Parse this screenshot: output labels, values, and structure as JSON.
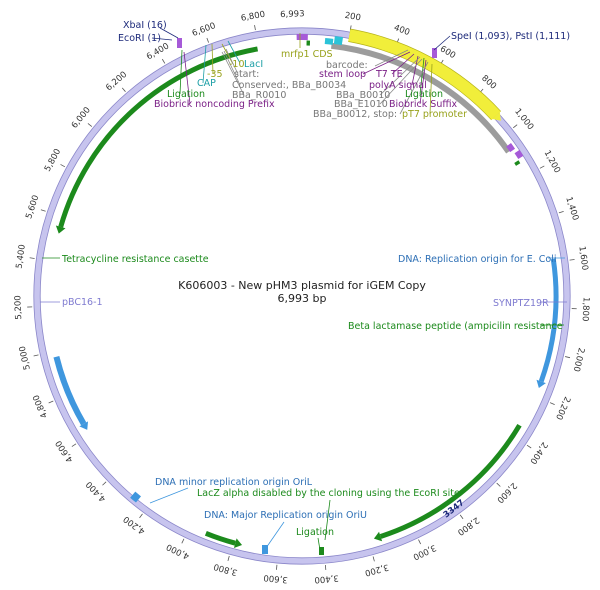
{
  "plasmid": {
    "title": "K606003 - New pHM3 plasmid for iGEM Copy",
    "length_text": "6,993 bp",
    "length": 6993
  },
  "colors": {
    "backbone": "#c7c4ee",
    "backbone_stroke": "#8a86c9",
    "green": "#1c8a1c",
    "blue": "#3f97de",
    "yellow": "#f1ee3a",
    "gray": "#9c9c9c",
    "cyan": "#2cc3d8",
    "purple": "#a65ad8",
    "navy": "#1d2a7a",
    "olive": "#98a21c",
    "teal": "#1c9fa6",
    "darkpurple": "#7a1f86",
    "lavender": "#7f7bd0",
    "text_gray": "#666666"
  },
  "ticks": [
    "200",
    "400",
    "600",
    "800",
    "1,000",
    "1,200",
    "1,400",
    "1,600",
    "1,800",
    "2,000",
    "2,200",
    "2,400",
    "2,600",
    "2,800",
    "3,000",
    "3,200",
    "3,400",
    "3,600",
    "3,800",
    "4,000",
    "4,200",
    "4,400",
    "4,600",
    "4,800",
    "5,000",
    "5,200",
    "5,400",
    "5,600",
    "5,800",
    "6,000",
    "6,200",
    "6,400",
    "6,600",
    "6,800"
  ],
  "tick_values": [
    200,
    400,
    600,
    800,
    1000,
    1200,
    1400,
    1600,
    1800,
    2000,
    2200,
    2400,
    2600,
    2800,
    3000,
    3200,
    3400,
    3600,
    3800,
    4000,
    4200,
    4400,
    4600,
    4800,
    5000,
    5200,
    5400,
    5600,
    5800,
    6000,
    6200,
    6400,
    6600,
    6800
  ],
  "extra_tick_label": "6,993",
  "position_marker": "3347",
  "features": {
    "ecori": "EcoRI (1)",
    "xbai": "XbaI (16)",
    "spei_psti": "SpeI (1,093), PstI (1,111)",
    "mrfp1": "mrfp1 CDS",
    "laci": "LacI",
    "minus10": "-10",
    "minus35": "-35",
    "cap": "CAP",
    "start": "start:",
    "conserved": "Conserved:, BBa_B0034",
    "bba_r0010": "BBa_R0010",
    "ligation_left": "Ligation",
    "biobrick_prefix": "Biobrick noncoding Prefix",
    "barcode": "barcode:",
    "stem_loop": "stem loop",
    "t7te": "T7 TE",
    "polya": "polyA signal",
    "bba_b0010": "BBa_B0010",
    "ligation_right": "Ligation",
    "bba_e1010": "BBa_E1010",
    "biobrick_suffix": "Biobrick Suffix",
    "bba_b0012": "BBa_B0012, stop:",
    "pt7": "pT7 promoter",
    "tet": "Tetracycline resistance casette",
    "ori_ecoli": "DNA: Replication origin for E. Coli",
    "synptz": "SYNPTZ19R",
    "beta_lac": "Beta lactamase peptide (ampicilin resistance",
    "pbc16": "pBC16-1",
    "ori_minor": "DNA minor replication origin OriL",
    "lacz": "LacZ alpha disabled by the cloning using the EcoRI site",
    "ori_major": "DNA: Major Replication origin OriU",
    "ligation_bottom": "Ligation"
  }
}
